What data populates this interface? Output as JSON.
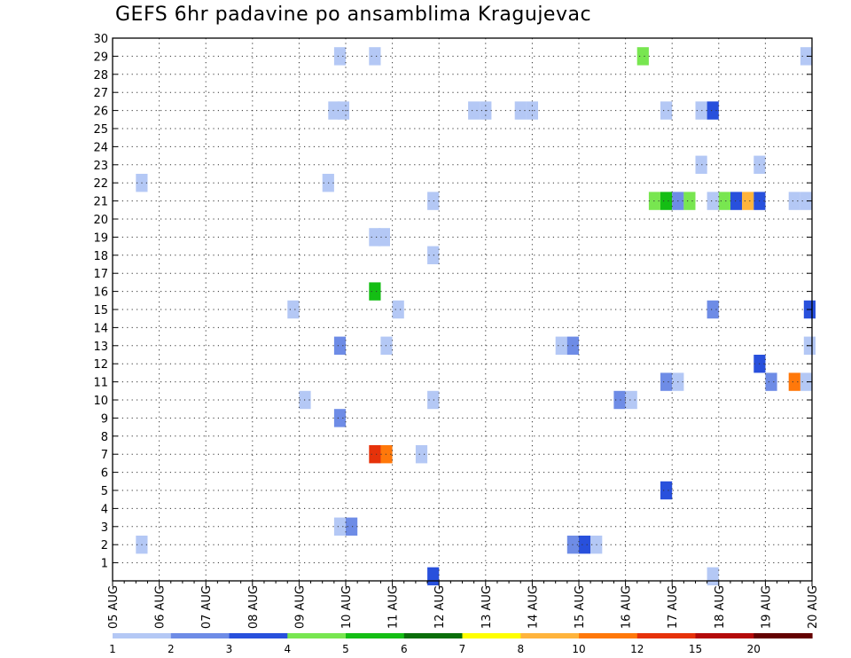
{
  "chart_data": {
    "type": "heatmap",
    "title": "GEFS 6hr padavine po ansamblima Kragujevac",
    "xlabel": "",
    "ylabel": "",
    "x_ticks": [
      "05 AUG",
      "06 AUG",
      "07 AUG",
      "08 AUG",
      "09 AUG",
      "10 AUG",
      "11 AUG",
      "12 AUG",
      "13 AUG",
      "14 AUG",
      "15 AUG",
      "16 AUG",
      "17 AUG",
      "18 AUG",
      "19 AUG",
      "20 AUG"
    ],
    "y_ticks": [
      "1",
      "2",
      "3",
      "4",
      "5",
      "6",
      "7",
      "8",
      "9",
      "10",
      "11",
      "12",
      "13",
      "14",
      "15",
      "16",
      "17",
      "18",
      "19",
      "20",
      "21",
      "22",
      "23",
      "24",
      "25",
      "26",
      "27",
      "28",
      "29",
      "30"
    ],
    "x_range": [
      0,
      60
    ],
    "y_range": [
      0,
      30
    ],
    "x_units": "6-hour steps since 05 AUG 00 UTC",
    "y_units": "ensemble member",
    "grid": true,
    "colorbar": {
      "labels": [
        "1",
        "2",
        "3",
        "4",
        "5",
        "6",
        "7",
        "8",
        "10",
        "12",
        "15",
        "20"
      ],
      "colors": [
        "#b4c8f5",
        "#6e8ce6",
        "#2850dc",
        "#78e650",
        "#14be14",
        "#0a6e0a",
        "#ffff00",
        "#ffb43c",
        "#ff780a",
        "#e6320a",
        "#b40a0a",
        "#640000"
      ]
    },
    "cells": [
      {
        "x": 19.5,
        "y": 29,
        "c": 0
      },
      {
        "x": 22.5,
        "y": 29,
        "c": 0
      },
      {
        "x": 45.5,
        "y": 29,
        "c": 3
      },
      {
        "x": 59.5,
        "y": 29,
        "c": 0
      },
      {
        "x": 19,
        "y": 26,
        "c": 0
      },
      {
        "x": 19.8,
        "y": 26,
        "c": 0
      },
      {
        "x": 31,
        "y": 26,
        "c": 0
      },
      {
        "x": 32,
        "y": 26,
        "c": 0
      },
      {
        "x": 35,
        "y": 26,
        "c": 0
      },
      {
        "x": 36,
        "y": 26,
        "c": 0
      },
      {
        "x": 47.5,
        "y": 26,
        "c": 0
      },
      {
        "x": 50.5,
        "y": 26,
        "c": 0
      },
      {
        "x": 51.5,
        "y": 26,
        "c": 2
      },
      {
        "x": 50.5,
        "y": 23,
        "c": 0
      },
      {
        "x": 55.5,
        "y": 23,
        "c": 0
      },
      {
        "x": 2.5,
        "y": 22,
        "c": 0
      },
      {
        "x": 18.5,
        "y": 22,
        "c": 0
      },
      {
        "x": 27.5,
        "y": 21,
        "c": 0
      },
      {
        "x": 46.5,
        "y": 21,
        "c": 3
      },
      {
        "x": 47.5,
        "y": 21,
        "c": 4
      },
      {
        "x": 48.5,
        "y": 21,
        "c": 1
      },
      {
        "x": 49.5,
        "y": 21,
        "c": 3
      },
      {
        "x": 51.5,
        "y": 21,
        "c": 0
      },
      {
        "x": 52.5,
        "y": 21,
        "c": 3
      },
      {
        "x": 53.5,
        "y": 21,
        "c": 2
      },
      {
        "x": 54.5,
        "y": 21,
        "c": 7
      },
      {
        "x": 55.5,
        "y": 21,
        "c": 2
      },
      {
        "x": 58.5,
        "y": 21,
        "c": 0
      },
      {
        "x": 59.5,
        "y": 21,
        "c": 0
      },
      {
        "x": 22.5,
        "y": 19,
        "c": 0
      },
      {
        "x": 23.3,
        "y": 19,
        "c": 0
      },
      {
        "x": 27.5,
        "y": 18,
        "c": 0
      },
      {
        "x": 22.5,
        "y": 16,
        "c": 4
      },
      {
        "x": 15.5,
        "y": 15,
        "c": 0
      },
      {
        "x": 24.5,
        "y": 15,
        "c": 0
      },
      {
        "x": 51.5,
        "y": 15,
        "c": 1
      },
      {
        "x": 59.8,
        "y": 15,
        "c": 2
      },
      {
        "x": 19.5,
        "y": 13,
        "c": 1
      },
      {
        "x": 23.5,
        "y": 13,
        "c": 0
      },
      {
        "x": 38.5,
        "y": 13,
        "c": 0
      },
      {
        "x": 39.5,
        "y": 13,
        "c": 1
      },
      {
        "x": 59.8,
        "y": 13,
        "c": 0
      },
      {
        "x": 55.5,
        "y": 12,
        "c": 2
      },
      {
        "x": 47.5,
        "y": 11,
        "c": 1
      },
      {
        "x": 48.5,
        "y": 11,
        "c": 0
      },
      {
        "x": 56.5,
        "y": 11,
        "c": 1
      },
      {
        "x": 58.5,
        "y": 11,
        "c": 8
      },
      {
        "x": 59.5,
        "y": 11,
        "c": 0
      },
      {
        "x": 16.5,
        "y": 10,
        "c": 0
      },
      {
        "x": 27.5,
        "y": 10,
        "c": 0
      },
      {
        "x": 43.5,
        "y": 10,
        "c": 1
      },
      {
        "x": 44.5,
        "y": 10,
        "c": 0
      },
      {
        "x": 19.5,
        "y": 9,
        "c": 1
      },
      {
        "x": 22.5,
        "y": 7,
        "c": 9
      },
      {
        "x": 23.5,
        "y": 7,
        "c": 8
      },
      {
        "x": 26.5,
        "y": 7,
        "c": 0
      },
      {
        "x": 47.5,
        "y": 5,
        "c": 2
      },
      {
        "x": 19.5,
        "y": 3,
        "c": 0
      },
      {
        "x": 20.5,
        "y": 3,
        "c": 1
      },
      {
        "x": 2.5,
        "y": 2,
        "c": 0
      },
      {
        "x": 39.5,
        "y": 2,
        "c": 1
      },
      {
        "x": 40.5,
        "y": 2,
        "c": 2
      },
      {
        "x": 41.5,
        "y": 2,
        "c": 0
      },
      {
        "x": 27.5,
        "y": 0.25,
        "c": 2
      },
      {
        "x": 51.5,
        "y": 0.25,
        "c": 0
      }
    ]
  }
}
